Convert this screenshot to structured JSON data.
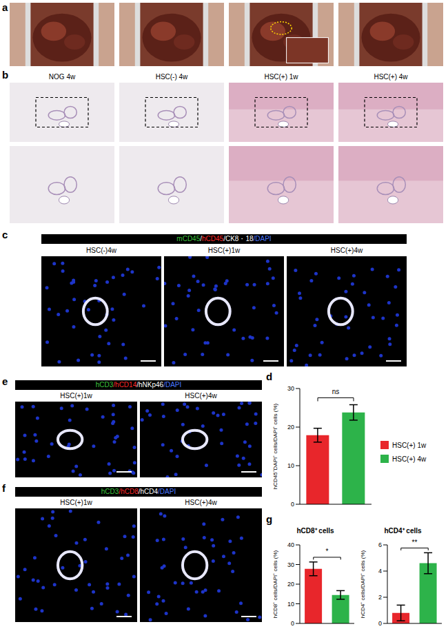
{
  "figure": {
    "a": {
      "letter": "a"
    },
    "b": {
      "letter": "b",
      "columns": [
        "NOG 4w",
        "HSC(-) 4w",
        "HSC(+) 1w",
        "HSC(+) 4w"
      ]
    },
    "c": {
      "letter": "c",
      "stain": [
        {
          "text": "mCD45",
          "color": "#3ec63e"
        },
        {
          "text": "/",
          "color": "#ffffff"
        },
        {
          "text": "hCD45",
          "color": "#ff2a2a"
        },
        {
          "text": "/CK8・18",
          "color": "#ffffff"
        },
        {
          "text": "/DAPI",
          "color": "#4a78ff"
        }
      ],
      "columns": [
        "HSC(-)4w",
        "HSC(+)1w",
        "HSC(+)4w"
      ]
    },
    "d": {
      "letter": "d"
    },
    "e": {
      "letter": "e",
      "stain": [
        {
          "text": "hCD3",
          "color": "#3ec63e"
        },
        {
          "text": "/hCD14",
          "color": "#ff2a2a"
        },
        {
          "text": "/hNKp46",
          "color": "#ffffff"
        },
        {
          "text": "/DAPI",
          "color": "#4a78ff"
        }
      ],
      "columns": [
        "HSC(+)1w",
        "HSC(+)4w"
      ]
    },
    "f": {
      "letter": "f",
      "stain": [
        {
          "text": "hCD3",
          "color": "#3ec63e"
        },
        {
          "text": "/hCD8",
          "color": "#ff2a2a"
        },
        {
          "text": "/hCD4",
          "color": "#ffffff"
        },
        {
          "text": "/DAPI",
          "color": "#4a78ff"
        }
      ],
      "columns": [
        "HSC(+)1w",
        "HSC(+)4w"
      ]
    },
    "g": {
      "letter": "g"
    }
  },
  "chart_data": [
    {
      "type": "bar",
      "categories": [
        "HSC(+) 1w",
        "HSC(+) 4w"
      ],
      "values": [
        17.9,
        23.8
      ],
      "errors": [
        1.8,
        2.0
      ],
      "colors": [
        "#e8262b",
        "#2db34a"
      ],
      "ylabel": "hCD45⁺DAPI⁺ cells/DAPI⁺ cells (%)",
      "ylim": [
        0,
        30
      ],
      "yticks": [
        0,
        10,
        20,
        30
      ],
      "annotation": "ns",
      "legend": "right",
      "tick_labels": "y"
    },
    {
      "type": "bar",
      "title": "hCD8⁺ cells",
      "categories": [
        "HSC(+) 1w",
        "HSC(+) 4w"
      ],
      "values": [
        27.8,
        14.5
      ],
      "errors": [
        3.5,
        2.2
      ],
      "colors": [
        "#e8262b",
        "#2db34a"
      ],
      "ylabel": "hCD8⁺ cells/DAPI⁺ cells (%)",
      "ylim": [
        0,
        40
      ],
      "yticks": [
        0,
        10,
        20,
        30,
        40
      ],
      "annotation": "*",
      "tick_labels": "y"
    },
    {
      "type": "bar",
      "title": "hCD4⁺ cells",
      "categories": [
        "HSC(+) 1w",
        "HSC(+) 4w"
      ],
      "values": [
        0.8,
        4.6
      ],
      "errors": [
        0.6,
        0.8
      ],
      "colors": [
        "#e8262b",
        "#2db34a"
      ],
      "ylabel": "hCD4⁺ cells/DAPI⁺ cells (%)",
      "ylim": [
        0,
        6
      ],
      "yticks": [
        0,
        2,
        4,
        6
      ],
      "annotation": "**",
      "tick_labels": "y"
    }
  ]
}
